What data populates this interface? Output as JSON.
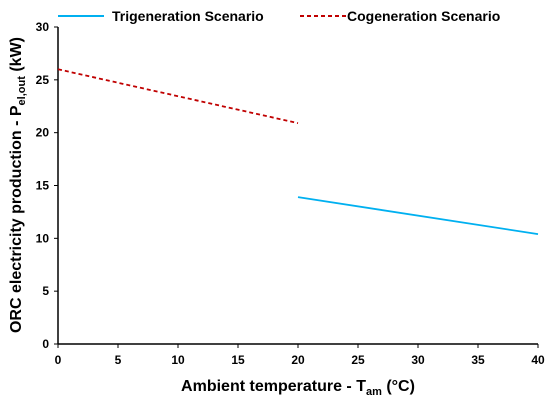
{
  "chart_data": {
    "type": "line",
    "xlabel_main": "Ambient temperature - T",
    "xlabel_sub": "am",
    "xlabel_unit": " (°C)",
    "ylabel_main": "ORC electricity production - P",
    "ylabel_sub": "el,out",
    "ylabel_unit": " (kW)",
    "xlim": [
      0,
      40
    ],
    "ylim": [
      0,
      30
    ],
    "xticks": [
      0,
      5,
      10,
      15,
      20,
      25,
      30,
      35,
      40
    ],
    "yticks": [
      0,
      5,
      10,
      15,
      20,
      25,
      30
    ],
    "grid": false,
    "legend_position": "top",
    "series": [
      {
        "name": "Trigeneration Scenario",
        "color": "#00b0f0",
        "style": "solid",
        "x": [
          20,
          40
        ],
        "y": [
          13.9,
          10.4
        ]
      },
      {
        "name": "Cogeneration Scenario",
        "color": "#c00000",
        "style": "dashed",
        "x": [
          0,
          20
        ],
        "y": [
          26.0,
          20.9
        ]
      }
    ]
  }
}
